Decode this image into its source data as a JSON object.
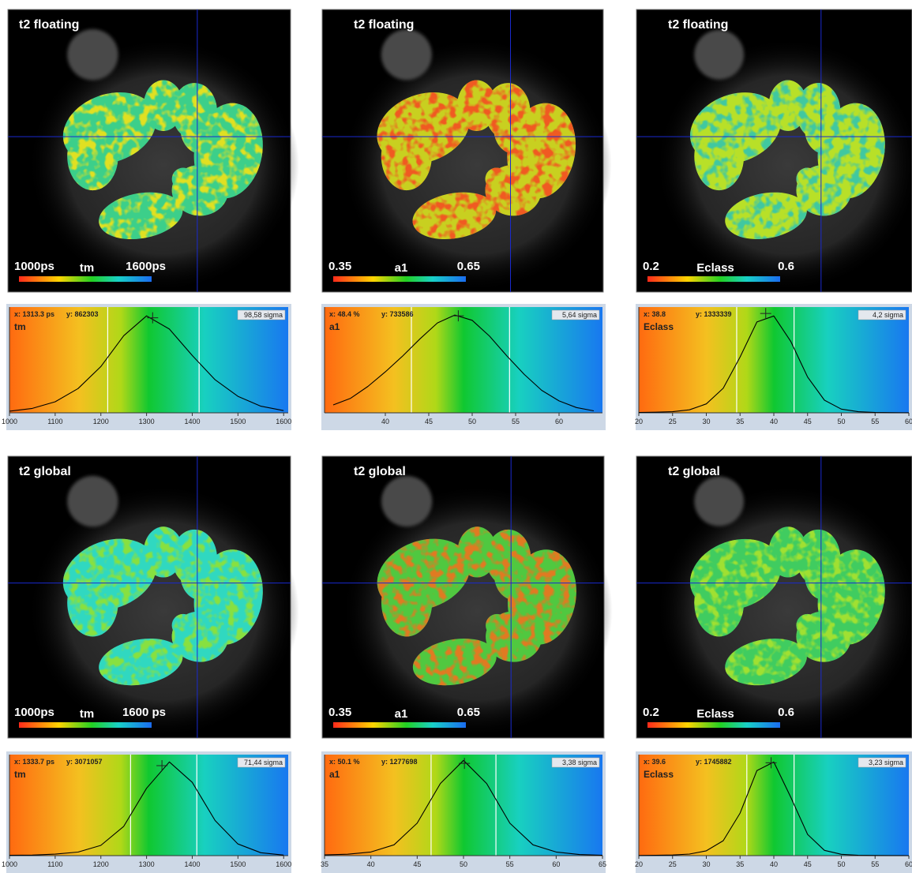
{
  "panels": [
    {
      "title": "t2 floating",
      "bar_left": "1000ps",
      "bar_name": "tm",
      "bar_right": "1600ps"
    },
    {
      "title": "t2 floating",
      "bar_left": "0.35",
      "bar_name": "a1",
      "bar_right": "0.65"
    },
    {
      "title": "t2 floating",
      "bar_left": "0.2",
      "bar_name": "Eclass",
      "bar_right": "0.6"
    },
    {
      "title": "t2 global",
      "bar_left": "1000ps",
      "bar_name": "tm",
      "bar_right": "1600 ps"
    },
    {
      "title": "t2 global",
      "bar_left": "0.35",
      "bar_name": "a1",
      "bar_right": "0.65"
    },
    {
      "title": "t2 global",
      "bar_left": "0.2",
      "bar_name": "Eclass",
      "bar_right": "0.6"
    }
  ],
  "chart_data": [
    {
      "type": "line",
      "label": "tm",
      "readout_x": "x: 1313.3 ps",
      "readout_y": "y: 862303",
      "sigma_label": "98,58 sigma",
      "color": "#000000",
      "x": [
        1000,
        1050,
        1100,
        1150,
        1200,
        1250,
        1300,
        1350,
        1400,
        1450,
        1500,
        1550,
        1600
      ],
      "values": [
        15000,
        40000,
        100000,
        220000,
        420000,
        700000,
        880000,
        760000,
        520000,
        300000,
        150000,
        60000,
        20000
      ],
      "xlim": [
        1000,
        1610
      ],
      "xticks": [
        1000,
        1100,
        1200,
        1300,
        1400,
        1500,
        1600
      ],
      "ylim": [
        0,
        960000
      ],
      "markers": [
        1215,
        1415
      ],
      "cursor": [
        1313.3,
        862303
      ]
    },
    {
      "type": "line",
      "label": "a1",
      "readout_x": "x: 48.4 %",
      "readout_y": "y: 733586",
      "sigma_label": "5,64 sigma",
      "color": "#000000",
      "x": [
        34,
        36,
        38,
        40,
        42,
        44,
        46,
        48,
        50,
        52,
        54,
        56,
        58,
        60,
        62,
        64
      ],
      "values": [
        60000,
        110000,
        200000,
        310000,
        430000,
        560000,
        680000,
        740000,
        700000,
        580000,
        430000,
        290000,
        170000,
        90000,
        40000,
        15000
      ],
      "xlim": [
        33,
        65
      ],
      "xticks": [
        40,
        45,
        50,
        55,
        60
      ],
      "ylim": [
        0,
        800000
      ],
      "markers": [
        43,
        54.3
      ],
      "cursor": [
        48.4,
        733586
      ]
    },
    {
      "type": "line",
      "label": "Eclass",
      "readout_x": "x: 38.8",
      "readout_y": "y: 1333339",
      "sigma_label": "4,2 sigma",
      "color": "#000000",
      "x": [
        20,
        22.5,
        25,
        27.5,
        30,
        32.5,
        35,
        37.5,
        40,
        42.5,
        45,
        47.5,
        50,
        52.5,
        55,
        57.5,
        60
      ],
      "values": [
        5000,
        8000,
        15000,
        40000,
        120000,
        330000,
        750000,
        1220000,
        1300000,
        960000,
        480000,
        170000,
        50000,
        15000,
        5000,
        2000,
        1000
      ],
      "xlim": [
        20,
        60
      ],
      "xticks": [
        20,
        25,
        30,
        35,
        40,
        45,
        50,
        55,
        60
      ],
      "ylim": [
        0,
        1420000
      ],
      "markers": [
        34.5,
        43
      ],
      "cursor": [
        38.8,
        1333339
      ]
    },
    {
      "type": "line",
      "label": "tm",
      "readout_x": "x: 1333.7 ps",
      "readout_y": "y: 3071057",
      "sigma_label": "71,44 sigma",
      "color": "#000000",
      "x": [
        1000,
        1050,
        1100,
        1150,
        1200,
        1250,
        1300,
        1350,
        1400,
        1450,
        1500,
        1550,
        1600
      ],
      "values": [
        10000,
        20000,
        50000,
        120000,
        350000,
        1000000,
        2300000,
        3200000,
        2500000,
        1200000,
        400000,
        100000,
        20000
      ],
      "xlim": [
        1000,
        1610
      ],
      "xticks": [
        1000,
        1100,
        1200,
        1300,
        1400,
        1500,
        1600
      ],
      "ylim": [
        0,
        3450000
      ],
      "markers": [
        1265,
        1410
      ],
      "cursor": [
        1333.7,
        3071057
      ]
    },
    {
      "type": "line",
      "label": "a1",
      "readout_x": "x: 50.1 %",
      "readout_y": "y: 1277698",
      "sigma_label": "3,38 sigma",
      "color": "#000000",
      "x": [
        35,
        37.5,
        40,
        42.5,
        45,
        47.5,
        50,
        52.5,
        55,
        57.5,
        60,
        62.5,
        65
      ],
      "values": [
        10000,
        20000,
        50000,
        150000,
        450000,
        1000000,
        1320000,
        1000000,
        450000,
        150000,
        50000,
        15000,
        5000
      ],
      "xlim": [
        35,
        65
      ],
      "xticks": [
        35,
        40,
        45,
        50,
        55,
        60,
        65
      ],
      "ylim": [
        0,
        1400000
      ],
      "markers": [
        46.5,
        53.5
      ],
      "cursor": [
        50.1,
        1277698
      ]
    },
    {
      "type": "line",
      "label": "Eclass",
      "readout_x": "x: 39.6",
      "readout_y": "y: 1745882",
      "sigma_label": "3,23 sigma",
      "color": "#000000",
      "x": [
        20,
        22.5,
        25,
        27.5,
        30,
        32.5,
        35,
        37.5,
        40,
        42.5,
        45,
        47.5,
        50,
        52.5,
        55,
        57.5,
        60
      ],
      "values": [
        3000,
        6000,
        12000,
        30000,
        90000,
        280000,
        800000,
        1600000,
        1760000,
        1100000,
        400000,
        100000,
        25000,
        8000,
        3000,
        1000,
        500
      ],
      "xlim": [
        20,
        60
      ],
      "xticks": [
        20,
        25,
        30,
        35,
        40,
        45,
        50,
        55,
        60
      ],
      "ylim": [
        0,
        1900000
      ],
      "markers": [
        36,
        43
      ],
      "cursor": [
        39.6,
        1745882
      ]
    }
  ]
}
